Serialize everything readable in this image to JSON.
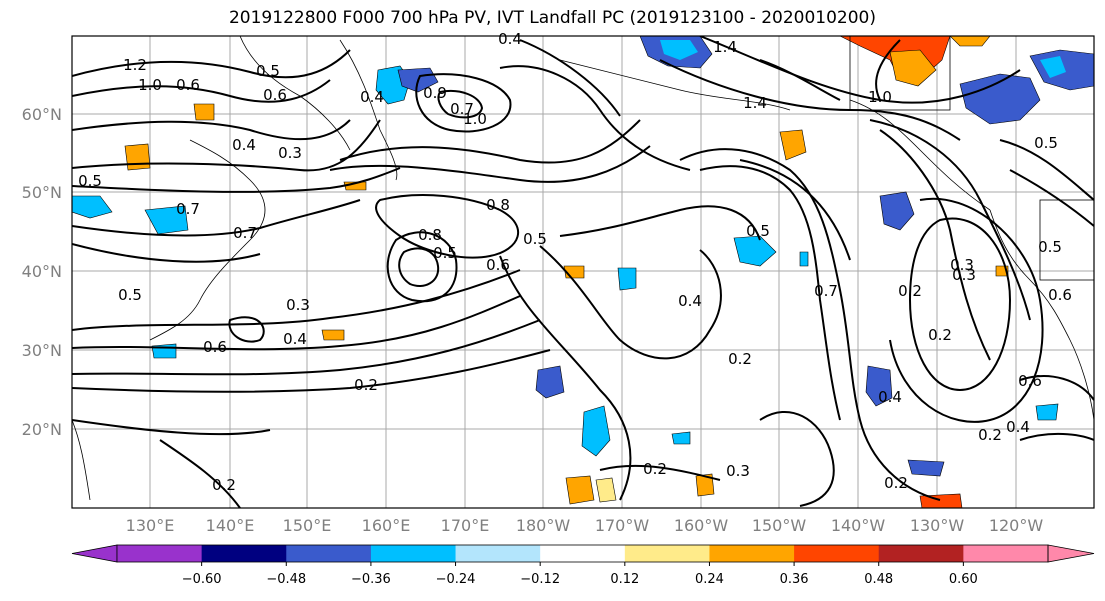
{
  "title": "2019122800 F000 700 hPa PV, IVT Landfall PC (2019123100 - 2020010200)",
  "map": {
    "lat_ticks": [
      "60°N",
      "50°N",
      "40°N",
      "30°N",
      "20°N"
    ],
    "lon_ticks": [
      "130°E",
      "140°E",
      "150°E",
      "160°E",
      "170°E",
      "180°W",
      "170°W",
      "160°W",
      "150°W",
      "140°W",
      "130°W",
      "120°W"
    ],
    "contour_labels": [
      "1.2",
      "1.0",
      "0.6",
      "0.5",
      "0.6",
      "0.4",
      "0.3",
      "0.7",
      "0.5",
      "1.4",
      "1.4",
      "1.0",
      "0.4",
      "0.4",
      "0.8",
      "0.7",
      "0.8",
      "0.5",
      "0.7",
      "1.0",
      "0.9",
      "0.6",
      "0.5",
      "0.5",
      "0.7",
      "0.4",
      "0.2",
      "0.3",
      "0.2",
      "0.5",
      "0.6",
      "0.4",
      "0.3",
      "0.2",
      "0.6",
      "0.3",
      "0.2",
      "0.2",
      "0.2",
      "0.3",
      "0.2",
      "0.4",
      "0.2",
      "0.4",
      "0.6",
      "0.5",
      "0.5"
    ]
  },
  "colorbar": {
    "ticks": [
      "−0.60",
      "−0.48",
      "−0.36",
      "−0.24",
      "−0.12",
      "0.12",
      "0.24",
      "0.36",
      "0.48",
      "0.60"
    ],
    "colors": [
      "#9932cc",
      "#000080",
      "#3a5bcc",
      "#00bfff",
      "#b3e5fc",
      "#ffffff",
      "#ffeb8a",
      "#ffa500",
      "#ff4500",
      "#b22222",
      "#ff88aa"
    ]
  }
}
